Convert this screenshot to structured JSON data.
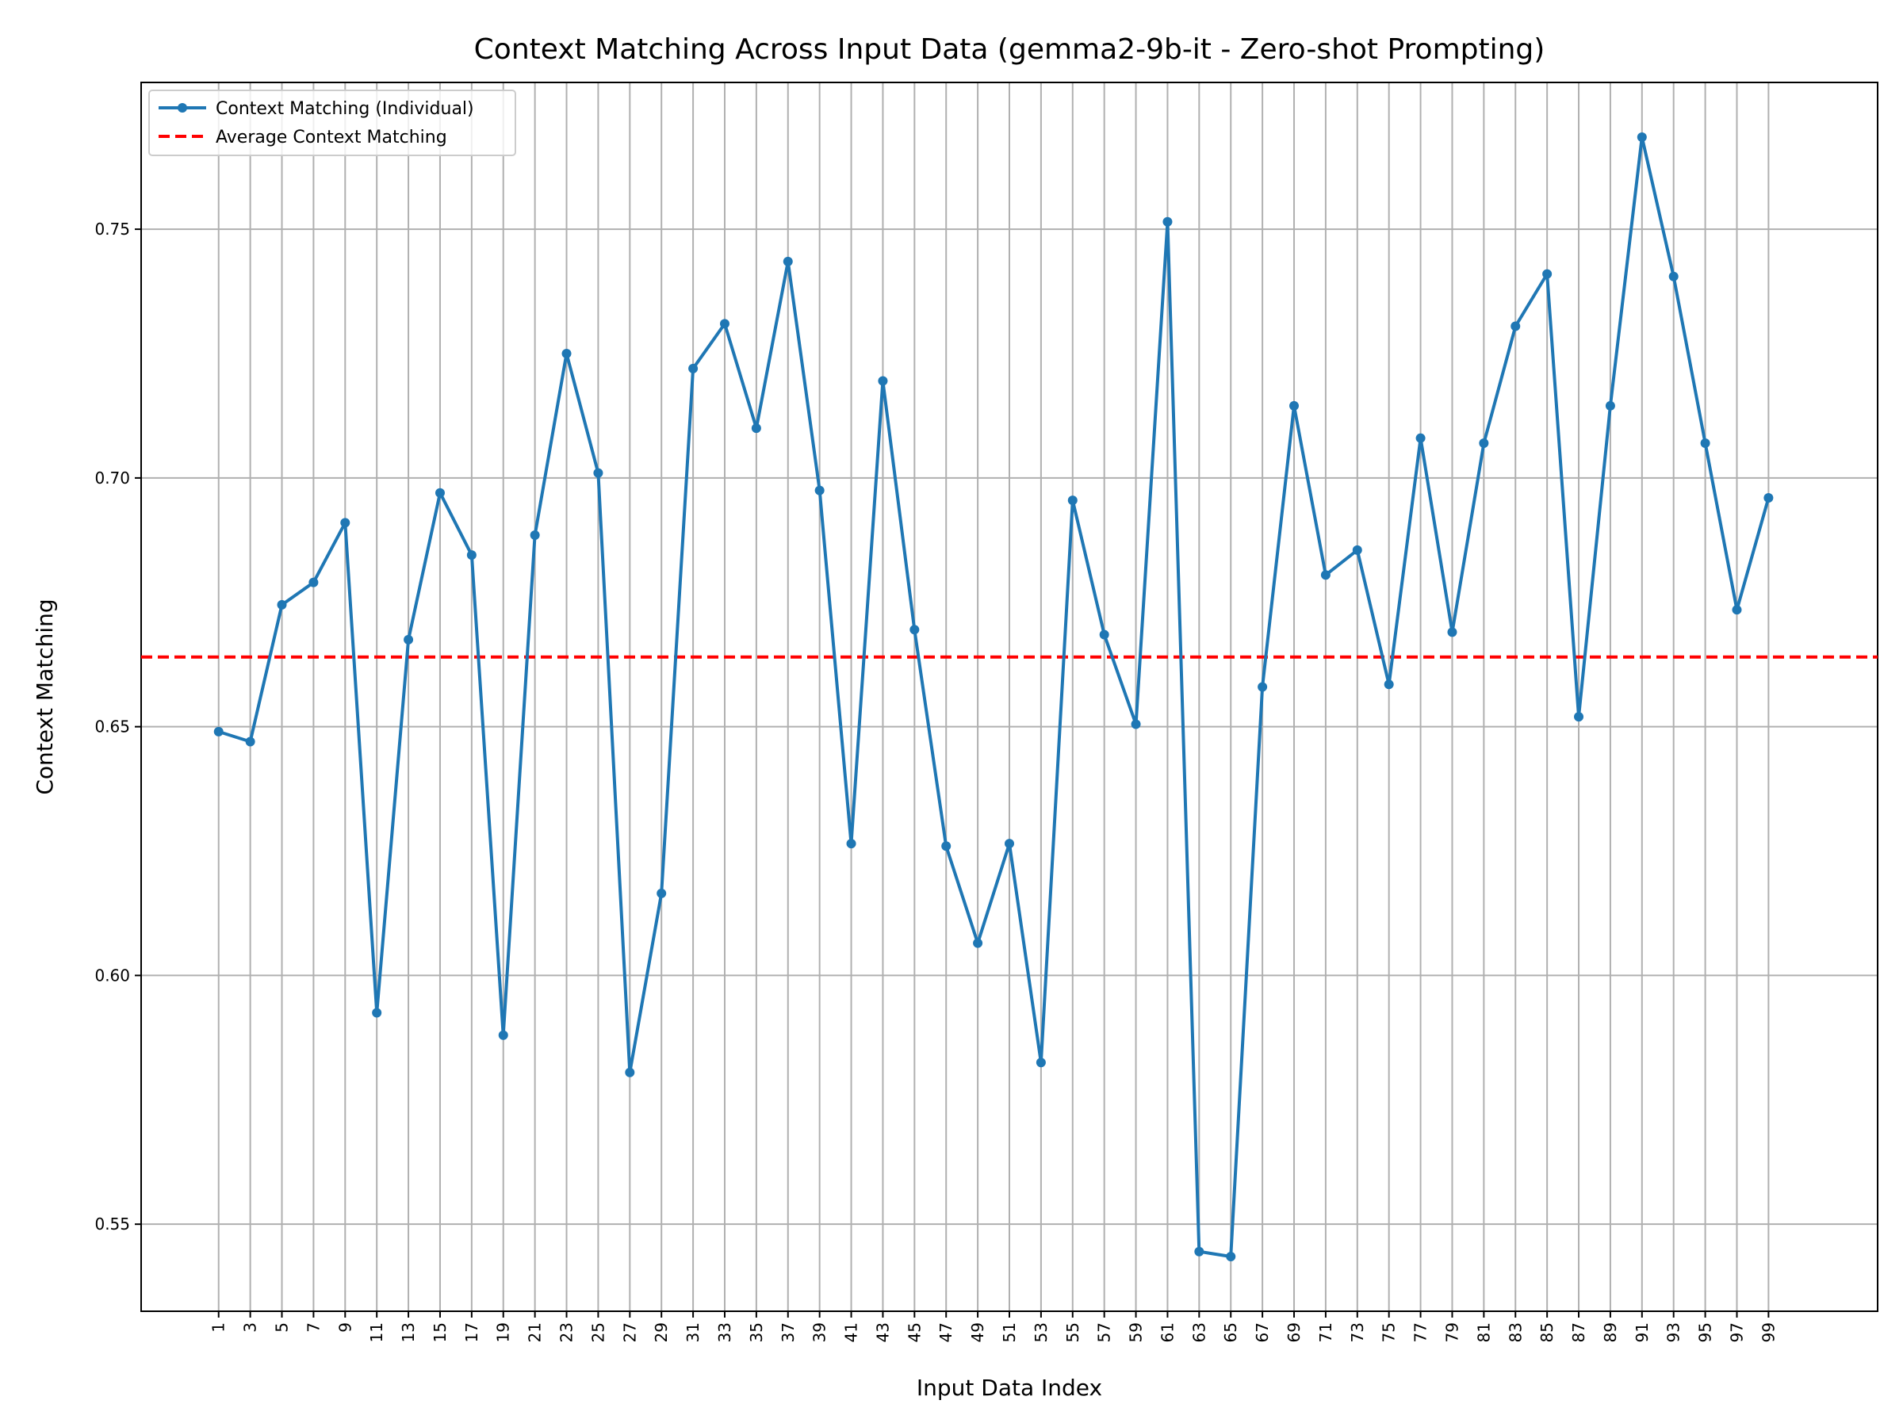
{
  "chart_data": {
    "type": "line",
    "title": "Context Matching Across Input Data (gemma2-9b-it - Zero-shot Prompting)",
    "xlabel": "Input Data Index",
    "ylabel": "Context Matching",
    "xlim": [
      -3.9,
      105.9
    ],
    "ylim": [
      0.5325,
      0.7795
    ],
    "xticks": [
      1,
      3,
      5,
      7,
      9,
      11,
      13,
      15,
      17,
      19,
      21,
      23,
      25,
      27,
      29,
      31,
      33,
      35,
      37,
      39,
      41,
      43,
      45,
      47,
      49,
      51,
      53,
      55,
      57,
      59,
      61,
      63,
      65,
      67,
      69,
      71,
      73,
      75,
      77,
      79,
      81,
      83,
      85,
      87,
      89,
      91,
      93,
      95,
      97,
      99
    ],
    "yticks": [
      0.55,
      0.6,
      0.65,
      0.7,
      0.75
    ],
    "ytick_labels": [
      "0.55",
      "0.60",
      "0.65",
      "0.70",
      "0.75"
    ],
    "grid": true,
    "legend_position": "upper-left",
    "series": [
      {
        "name": "Context Matching (Individual)",
        "color": "#1f77b4",
        "style": "solid-line-with-markers",
        "x": [
          1,
          3,
          5,
          7,
          9,
          11,
          13,
          15,
          17,
          19,
          21,
          23,
          25,
          27,
          29,
          31,
          33,
          35,
          37,
          39,
          41,
          43,
          45,
          47,
          49,
          51,
          53,
          55,
          57,
          59,
          61,
          63,
          65,
          67,
          69,
          71,
          73,
          75,
          77,
          79,
          81,
          83,
          85,
          87,
          89,
          91,
          93,
          95,
          97,
          99
        ],
        "values": [
          0.649,
          0.647,
          0.6745,
          0.679,
          0.691,
          0.5925,
          0.6675,
          0.697,
          0.6845,
          0.588,
          0.6885,
          0.725,
          0.701,
          0.5805,
          0.6165,
          0.722,
          0.731,
          0.71,
          0.7435,
          0.6975,
          0.6265,
          0.7195,
          0.6695,
          0.626,
          0.6065,
          0.6265,
          0.5825,
          0.6955,
          0.6685,
          0.6505,
          0.7515,
          0.5445,
          0.5435,
          0.658,
          0.7145,
          0.6805,
          0.6855,
          0.6585,
          0.708,
          0.669,
          0.707,
          0.7305,
          0.741,
          0.652,
          0.7145,
          0.7685,
          0.7405,
          0.707,
          0.6735,
          0.696
        ]
      },
      {
        "name": "Average Context Matching",
        "color": "#ff0000",
        "style": "dashed",
        "value": 0.664
      }
    ]
  }
}
